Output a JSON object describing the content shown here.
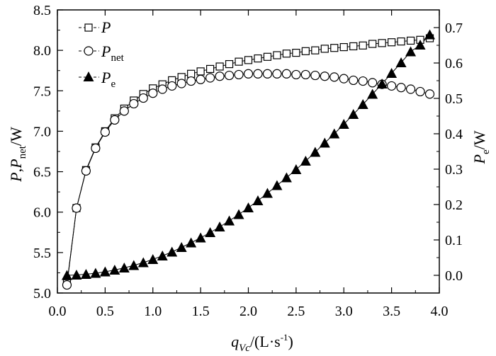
{
  "chart_data": {
    "type": "line",
    "x": [
      0.1,
      0.2,
      0.3,
      0.4,
      0.5,
      0.6,
      0.7,
      0.8,
      0.9,
      1.0,
      1.1,
      1.2,
      1.3,
      1.4,
      1.5,
      1.6,
      1.7,
      1.8,
      1.9,
      2.0,
      2.1,
      2.2,
      2.3,
      2.4,
      2.5,
      2.6,
      2.7,
      2.8,
      2.9,
      3.0,
      3.1,
      3.2,
      3.3,
      3.4,
      3.5,
      3.6,
      3.7,
      3.8,
      3.9
    ],
    "xlim": [
      0,
      4
    ],
    "ylim_left": [
      5.0,
      8.5
    ],
    "ylim_right": [
      -0.05,
      0.75
    ],
    "x_ticks": [
      "0.0",
      "0.5",
      "1.0",
      "1.5",
      "2.0",
      "2.5",
      "3.0",
      "3.5",
      "4.0"
    ],
    "y_left_ticks": [
      "5.0",
      "5.5",
      "6.0",
      "6.5",
      "7.0",
      "7.5",
      "8.0",
      "8.5"
    ],
    "y_right_ticks": [
      "0.0",
      "0.1",
      "0.2",
      "0.3",
      "0.4",
      "0.5",
      "0.6",
      "0.7"
    ],
    "xlabel": {
      "main": "q",
      "sub": "Vc",
      "rest": "/(L·s",
      "sup": "-1",
      "close": ")"
    },
    "ylabel_left": {
      "p1": "P",
      "sep": ",",
      "p2": "P",
      "sub": "net",
      "unit": "/W"
    },
    "ylabel_right": {
      "p": "P",
      "sub": "e",
      "unit": "/W"
    },
    "legend_position": "top-left",
    "series": [
      {
        "name": "P",
        "name_sub": "",
        "axis": "left",
        "marker": "open-square",
        "values": [
          5.12,
          6.05,
          6.52,
          6.8,
          7.0,
          7.16,
          7.28,
          7.38,
          7.46,
          7.53,
          7.58,
          7.63,
          7.67,
          7.71,
          7.74,
          7.77,
          7.8,
          7.83,
          7.86,
          7.88,
          7.9,
          7.92,
          7.94,
          7.96,
          7.97,
          7.99,
          8.0,
          8.02,
          8.03,
          8.04,
          8.05,
          8.06,
          8.08,
          8.09,
          8.1,
          8.11,
          8.12,
          8.13,
          8.15
        ]
      },
      {
        "name": "P",
        "name_sub": "net",
        "axis": "left",
        "marker": "open-circle",
        "values": [
          5.1,
          6.05,
          6.51,
          6.79,
          6.99,
          7.14,
          7.25,
          7.34,
          7.41,
          7.47,
          7.52,
          7.56,
          7.59,
          7.62,
          7.64,
          7.66,
          7.68,
          7.69,
          7.7,
          7.71,
          7.71,
          7.71,
          7.71,
          7.71,
          7.7,
          7.7,
          7.69,
          7.68,
          7.67,
          7.65,
          7.63,
          7.62,
          7.6,
          7.58,
          7.56,
          7.54,
          7.52,
          7.49,
          7.46
        ]
      },
      {
        "name": "P",
        "name_sub": "e",
        "axis": "right",
        "marker": "filled-triangle",
        "values": [
          0.0,
          0.001,
          0.003,
          0.006,
          0.01,
          0.015,
          0.021,
          0.028,
          0.036,
          0.045,
          0.055,
          0.066,
          0.079,
          0.092,
          0.106,
          0.121,
          0.137,
          0.154,
          0.172,
          0.191,
          0.211,
          0.232,
          0.254,
          0.276,
          0.299,
          0.323,
          0.348,
          0.374,
          0.4,
          0.427,
          0.455,
          0.483,
          0.512,
          0.541,
          0.571,
          0.601,
          0.632,
          0.651,
          0.68
        ]
      }
    ]
  }
}
